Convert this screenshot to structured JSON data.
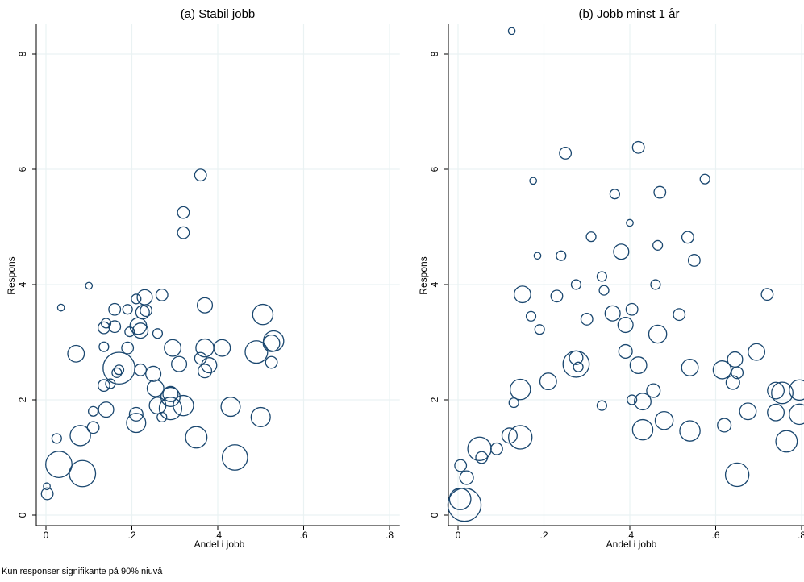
{
  "note": "Kun responser signifikante på 90% niuvå",
  "colors": {
    "marker": "#1a476f",
    "grid": "#eaf2f3",
    "axis": "#000000"
  },
  "chart_data": [
    {
      "type": "scatter",
      "title": "(a) Stabil jobb",
      "xlabel": "Andel i jobb",
      "ylabel": "Respons",
      "xlim": [
        0,
        0.8
      ],
      "ylim": [
        0,
        8.5
      ],
      "xticks": [
        0,
        0.2,
        0.4,
        0.6,
        0.8
      ],
      "xtick_labels": [
        "0",
        ".2",
        ".4",
        ".6",
        ".8"
      ],
      "yticks": [
        0,
        2,
        4,
        6,
        8
      ],
      "ytick_labels": [
        "0",
        "2",
        "4",
        "6",
        "8"
      ],
      "grid": true,
      "marker": "hollow circle, size proportional to weight",
      "points": [
        {
          "x": 0.36,
          "y": 5.9,
          "w": 3
        },
        {
          "x": 0.32,
          "y": 5.25,
          "w": 3
        },
        {
          "x": 0.32,
          "y": 4.9,
          "w": 3
        },
        {
          "x": 0.1,
          "y": 3.98,
          "w": 1
        },
        {
          "x": 0.035,
          "y": 3.6,
          "w": 1
        },
        {
          "x": 0.23,
          "y": 3.78,
          "w": 5
        },
        {
          "x": 0.21,
          "y": 3.75,
          "w": 2
        },
        {
          "x": 0.27,
          "y": 3.82,
          "w": 3
        },
        {
          "x": 0.16,
          "y": 3.57,
          "w": 3
        },
        {
          "x": 0.19,
          "y": 3.57,
          "w": 2
        },
        {
          "x": 0.225,
          "y": 3.52,
          "w": 4
        },
        {
          "x": 0.233,
          "y": 3.55,
          "w": 3
        },
        {
          "x": 0.37,
          "y": 3.64,
          "w": 5
        },
        {
          "x": 0.14,
          "y": 3.33,
          "w": 2
        },
        {
          "x": 0.135,
          "y": 3.25,
          "w": 3
        },
        {
          "x": 0.16,
          "y": 3.27,
          "w": 3
        },
        {
          "x": 0.195,
          "y": 3.18,
          "w": 2
        },
        {
          "x": 0.215,
          "y": 3.28,
          "w": 6
        },
        {
          "x": 0.22,
          "y": 3.2,
          "w": 5
        },
        {
          "x": 0.26,
          "y": 3.15,
          "w": 2
        },
        {
          "x": 0.505,
          "y": 3.48,
          "w": 9
        },
        {
          "x": 0.53,
          "y": 3.02,
          "w": 9
        },
        {
          "x": 0.525,
          "y": 2.98,
          "w": 6
        },
        {
          "x": 0.07,
          "y": 2.8,
          "w": 6
        },
        {
          "x": 0.135,
          "y": 2.92,
          "w": 2
        },
        {
          "x": 0.19,
          "y": 2.9,
          "w": 3
        },
        {
          "x": 0.295,
          "y": 2.9,
          "w": 6
        },
        {
          "x": 0.36,
          "y": 2.72,
          "w": 3
        },
        {
          "x": 0.37,
          "y": 2.9,
          "w": 7
        },
        {
          "x": 0.41,
          "y": 2.9,
          "w": 6
        },
        {
          "x": 0.49,
          "y": 2.83,
          "w": 11
        },
        {
          "x": 0.31,
          "y": 2.62,
          "w": 5
        },
        {
          "x": 0.37,
          "y": 2.5,
          "w": 4
        },
        {
          "x": 0.38,
          "y": 2.6,
          "w": 5
        },
        {
          "x": 0.525,
          "y": 2.65,
          "w": 3
        },
        {
          "x": 0.17,
          "y": 2.55,
          "w": 22
        },
        {
          "x": 0.17,
          "y": 2.52,
          "w": 2
        },
        {
          "x": 0.165,
          "y": 2.47,
          "w": 2
        },
        {
          "x": 0.22,
          "y": 2.52,
          "w": 3
        },
        {
          "x": 0.25,
          "y": 2.45,
          "w": 5
        },
        {
          "x": 0.135,
          "y": 2.25,
          "w": 3
        },
        {
          "x": 0.15,
          "y": 2.28,
          "w": 2
        },
        {
          "x": 0.255,
          "y": 2.2,
          "w": 6
        },
        {
          "x": 0.29,
          "y": 2.1,
          "w": 5
        },
        {
          "x": 0.29,
          "y": 2.05,
          "w": 8
        },
        {
          "x": 0.29,
          "y": 1.85,
          "w": 11
        },
        {
          "x": 0.26,
          "y": 1.9,
          "w": 6
        },
        {
          "x": 0.32,
          "y": 1.9,
          "w": 9
        },
        {
          "x": 0.14,
          "y": 1.83,
          "w": 5
        },
        {
          "x": 0.21,
          "y": 1.75,
          "w": 4
        },
        {
          "x": 0.11,
          "y": 1.8,
          "w": 2
        },
        {
          "x": 0.27,
          "y": 1.7,
          "w": 2
        },
        {
          "x": 0.43,
          "y": 1.88,
          "w": 8
        },
        {
          "x": 0.5,
          "y": 1.7,
          "w": 8
        },
        {
          "x": 0.21,
          "y": 1.6,
          "w": 8
        },
        {
          "x": 0.11,
          "y": 1.52,
          "w": 3
        },
        {
          "x": 0.08,
          "y": 1.38,
          "w": 9
        },
        {
          "x": 0.025,
          "y": 1.33,
          "w": 2
        },
        {
          "x": 0.35,
          "y": 1.35,
          "w": 10
        },
        {
          "x": 0.44,
          "y": 1.0,
          "w": 14
        },
        {
          "x": 0.03,
          "y": 0.88,
          "w": 15
        },
        {
          "x": 0.085,
          "y": 0.72,
          "w": 15
        },
        {
          "x": 0.002,
          "y": 0.5,
          "w": 1
        },
        {
          "x": 0.003,
          "y": 0.37,
          "w": 3
        }
      ]
    },
    {
      "type": "scatter",
      "title": "(b) Jobb minst 1 år",
      "xlabel": "Andel i jobb",
      "ylabel": "Respons",
      "xlim": [
        0,
        0.8
      ],
      "ylim": [
        0,
        8.5
      ],
      "xticks": [
        0,
        0.2,
        0.4,
        0.6,
        0.8
      ],
      "xtick_labels": [
        "0",
        ".2",
        ".4",
        ".6",
        ".8"
      ],
      "yticks": [
        0,
        2,
        4,
        6,
        8
      ],
      "ytick_labels": [
        "0",
        "2",
        "4",
        "6",
        "8"
      ],
      "grid": true,
      "marker": "hollow circle, size proportional to weight",
      "points": [
        {
          "x": 0.125,
          "y": 8.4,
          "w": 1
        },
        {
          "x": 0.42,
          "y": 6.38,
          "w": 3
        },
        {
          "x": 0.25,
          "y": 6.28,
          "w": 3
        },
        {
          "x": 0.575,
          "y": 5.83,
          "w": 2
        },
        {
          "x": 0.175,
          "y": 5.8,
          "w": 1
        },
        {
          "x": 0.47,
          "y": 5.6,
          "w": 3
        },
        {
          "x": 0.365,
          "y": 5.57,
          "w": 2
        },
        {
          "x": 0.4,
          "y": 5.07,
          "w": 1
        },
        {
          "x": 0.31,
          "y": 4.83,
          "w": 2
        },
        {
          "x": 0.535,
          "y": 4.82,
          "w": 3
        },
        {
          "x": 0.465,
          "y": 4.68,
          "w": 2
        },
        {
          "x": 0.38,
          "y": 4.57,
          "w": 5
        },
        {
          "x": 0.185,
          "y": 4.5,
          "w": 1
        },
        {
          "x": 0.24,
          "y": 4.5,
          "w": 2
        },
        {
          "x": 0.55,
          "y": 4.42,
          "w": 3
        },
        {
          "x": 0.335,
          "y": 4.14,
          "w": 2
        },
        {
          "x": 0.275,
          "y": 4.0,
          "w": 2
        },
        {
          "x": 0.46,
          "y": 4.0,
          "w": 2
        },
        {
          "x": 0.34,
          "y": 3.9,
          "w": 2
        },
        {
          "x": 0.15,
          "y": 3.83,
          "w": 6
        },
        {
          "x": 0.23,
          "y": 3.8,
          "w": 3
        },
        {
          "x": 0.72,
          "y": 3.83,
          "w": 3
        },
        {
          "x": 0.405,
          "y": 3.57,
          "w": 3
        },
        {
          "x": 0.36,
          "y": 3.5,
          "w": 5
        },
        {
          "x": 0.515,
          "y": 3.48,
          "w": 3
        },
        {
          "x": 0.17,
          "y": 3.45,
          "w": 2
        },
        {
          "x": 0.3,
          "y": 3.4,
          "w": 3
        },
        {
          "x": 0.39,
          "y": 3.3,
          "w": 5
        },
        {
          "x": 0.19,
          "y": 3.22,
          "w": 2
        },
        {
          "x": 0.465,
          "y": 3.14,
          "w": 7
        },
        {
          "x": 0.39,
          "y": 2.84,
          "w": 4
        },
        {
          "x": 0.695,
          "y": 2.83,
          "w": 6
        },
        {
          "x": 0.275,
          "y": 2.73,
          "w": 4
        },
        {
          "x": 0.645,
          "y": 2.7,
          "w": 5
        },
        {
          "x": 0.275,
          "y": 2.62,
          "w": 15
        },
        {
          "x": 0.28,
          "y": 2.57,
          "w": 2
        },
        {
          "x": 0.42,
          "y": 2.6,
          "w": 6
        },
        {
          "x": 0.54,
          "y": 2.56,
          "w": 6
        },
        {
          "x": 0.615,
          "y": 2.52,
          "w": 7
        },
        {
          "x": 0.65,
          "y": 2.47,
          "w": 3
        },
        {
          "x": 0.21,
          "y": 2.32,
          "w": 6
        },
        {
          "x": 0.64,
          "y": 2.3,
          "w": 4
        },
        {
          "x": 0.145,
          "y": 2.18,
          "w": 9
        },
        {
          "x": 0.455,
          "y": 2.16,
          "w": 4
        },
        {
          "x": 0.74,
          "y": 2.16,
          "w": 6
        },
        {
          "x": 0.755,
          "y": 2.12,
          "w": 10
        },
        {
          "x": 0.795,
          "y": 2.17,
          "w": 9
        },
        {
          "x": 0.405,
          "y": 2.0,
          "w": 2
        },
        {
          "x": 0.43,
          "y": 1.97,
          "w": 6
        },
        {
          "x": 0.13,
          "y": 1.95,
          "w": 2
        },
        {
          "x": 0.335,
          "y": 1.9,
          "w": 2
        },
        {
          "x": 0.675,
          "y": 1.8,
          "w": 6
        },
        {
          "x": 0.74,
          "y": 1.78,
          "w": 6
        },
        {
          "x": 0.795,
          "y": 1.75,
          "w": 9
        },
        {
          "x": 0.48,
          "y": 1.64,
          "w": 7
        },
        {
          "x": 0.62,
          "y": 1.56,
          "w": 4
        },
        {
          "x": 0.43,
          "y": 1.48,
          "w": 9
        },
        {
          "x": 0.54,
          "y": 1.46,
          "w": 9
        },
        {
          "x": 0.12,
          "y": 1.38,
          "w": 5
        },
        {
          "x": 0.145,
          "y": 1.35,
          "w": 12
        },
        {
          "x": 0.765,
          "y": 1.28,
          "w": 10
        },
        {
          "x": 0.05,
          "y": 1.15,
          "w": 12
        },
        {
          "x": 0.09,
          "y": 1.15,
          "w": 3
        },
        {
          "x": 0.055,
          "y": 1.0,
          "w": 3
        },
        {
          "x": 0.65,
          "y": 0.7,
          "w": 12
        },
        {
          "x": 0.006,
          "y": 0.86,
          "w": 3
        },
        {
          "x": 0.02,
          "y": 0.65,
          "w": 4
        },
        {
          "x": 0.015,
          "y": 0.18,
          "w": 24
        },
        {
          "x": 0.005,
          "y": 0.28,
          "w": 10
        }
      ]
    }
  ]
}
